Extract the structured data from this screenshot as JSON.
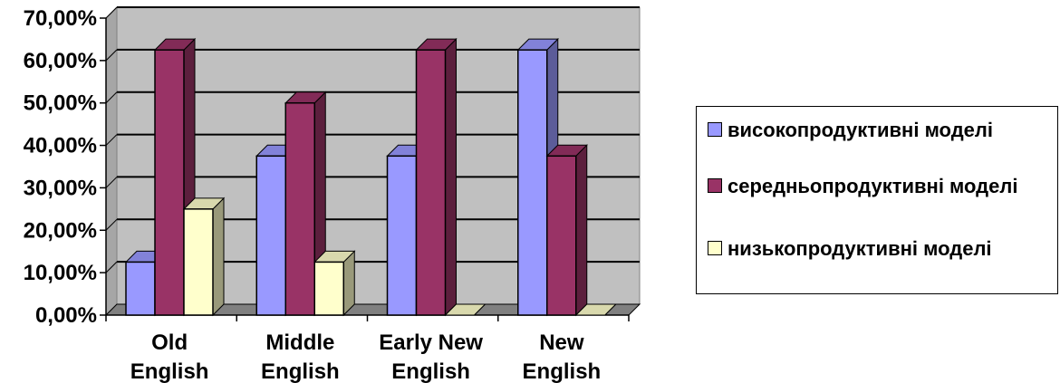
{
  "chart_data": {
    "type": "bar",
    "categories": [
      [
        "Old",
        "English"
      ],
      [
        "Middle",
        "English"
      ],
      [
        "Early New",
        "English"
      ],
      [
        "New",
        "English"
      ]
    ],
    "series": [
      {
        "name": "високопродуктивні моделі",
        "values": [
          12.5,
          37.5,
          37.5,
          62.5
        ],
        "color": "#9999ff"
      },
      {
        "name": "середньопродуктивні моделі",
        "values": [
          62.5,
          50.0,
          62.5,
          37.5
        ],
        "color": "#993366"
      },
      {
        "name": "низькопродуктивні моделі",
        "values": [
          25.0,
          12.5,
          0,
          0
        ],
        "color": "#ffffcc"
      }
    ],
    "ylim": [
      0,
      70
    ],
    "yticks": [
      "0,00%",
      "10,00%",
      "20,00%",
      "30,00%",
      "40,00%",
      "50,00%",
      "60,00%",
      "70,00%"
    ],
    "grid": true,
    "style": "3d-clustered-column",
    "legend_position": "right",
    "wall_color": "#c0c0c0",
    "floor_color": "#808080"
  },
  "legend": {
    "items": [
      {
        "label": "високопродуктивні моделі",
        "color": "#9999ff"
      },
      {
        "label": "середньопродуктивні моделі",
        "color": "#993366"
      },
      {
        "label": "низькопродуктивні моделі",
        "color": "#ffffcc"
      }
    ]
  }
}
